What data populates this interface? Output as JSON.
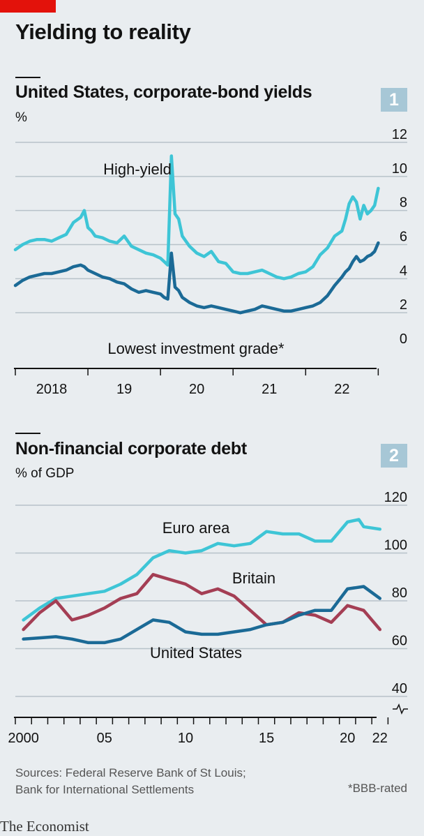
{
  "headline": "Yielding to reality",
  "source": {
    "line1": "Sources: Federal Reserve Bank of St Louis;",
    "line2": "Bank for International Settlements"
  },
  "footnote": "*BBB-rated",
  "brand": "The Economist",
  "colors": {
    "cyan": "#3ec5d6",
    "navy": "#1b6a96",
    "maroon": "#a43e54",
    "red_tag": "#e3120b",
    "badge": "#a7c7d6"
  },
  "chart_data": [
    {
      "type": "line",
      "badge": "1",
      "title": "United States, corporate-bond yields",
      "unit": "%",
      "x_tick_labels": [
        "2018",
        "19",
        "20",
        "21",
        "22"
      ],
      "x_ticks": [
        2017.5,
        2018.5,
        2019.5,
        2020.5,
        2021.5,
        2022.5
      ],
      "xlim": [
        2017.5,
        2022.9
      ],
      "ylim": [
        0,
        12
      ],
      "y_ticks": [
        0,
        2,
        4,
        6,
        8,
        10,
        12
      ],
      "grid": true,
      "series": [
        {
          "name": "High-yield",
          "color": "#3ec5d6",
          "x": [
            2017.5,
            2017.6,
            2017.7,
            2017.8,
            2017.9,
            2018.0,
            2018.1,
            2018.2,
            2018.3,
            2018.4,
            2018.45,
            2018.5,
            2018.55,
            2018.6,
            2018.7,
            2018.8,
            2018.9,
            2019.0,
            2019.1,
            2019.2,
            2019.3,
            2019.4,
            2019.5,
            2019.55,
            2019.6,
            2019.65,
            2019.7,
            2019.75,
            2019.8,
            2019.9,
            2020.0,
            2020.1,
            2020.2,
            2020.3,
            2020.4,
            2020.5,
            2020.6,
            2020.7,
            2020.8,
            2020.9,
            2021.0,
            2021.1,
            2021.2,
            2021.3,
            2021.4,
            2021.5,
            2021.6,
            2021.7,
            2021.8,
            2021.9,
            2022.0,
            2022.05,
            2022.1,
            2022.15,
            2022.2,
            2022.25,
            2022.3,
            2022.35,
            2022.4,
            2022.45,
            2022.5
          ],
          "y": [
            5.7,
            6.0,
            6.2,
            6.3,
            6.3,
            6.2,
            6.4,
            6.6,
            7.3,
            7.6,
            8.0,
            7.0,
            6.8,
            6.5,
            6.4,
            6.2,
            6.1,
            6.5,
            5.9,
            5.7,
            5.5,
            5.4,
            5.2,
            5.0,
            4.8,
            11.2,
            7.8,
            7.5,
            6.5,
            5.9,
            5.5,
            5.3,
            5.6,
            5.0,
            4.9,
            4.4,
            4.3,
            4.3,
            4.4,
            4.5,
            4.3,
            4.1,
            4.0,
            4.1,
            4.3,
            4.4,
            4.7,
            5.4,
            5.8,
            6.5,
            6.8,
            7.5,
            8.4,
            8.8,
            8.5,
            7.5,
            8.3,
            7.8,
            8.0,
            8.3,
            9.3
          ]
        },
        {
          "name": "Lowest investment grade*",
          "color": "#1b6a96",
          "x": [
            2017.5,
            2017.6,
            2017.7,
            2017.8,
            2017.9,
            2018.0,
            2018.1,
            2018.2,
            2018.3,
            2018.4,
            2018.45,
            2018.5,
            2018.6,
            2018.7,
            2018.8,
            2018.9,
            2019.0,
            2019.1,
            2019.2,
            2019.3,
            2019.4,
            2019.5,
            2019.55,
            2019.6,
            2019.65,
            2019.7,
            2019.75,
            2019.8,
            2019.9,
            2020.0,
            2020.1,
            2020.2,
            2020.3,
            2020.4,
            2020.5,
            2020.6,
            2020.7,
            2020.8,
            2020.9,
            2021.0,
            2021.1,
            2021.2,
            2021.3,
            2021.4,
            2021.5,
            2021.6,
            2021.7,
            2021.8,
            2021.9,
            2022.0,
            2022.05,
            2022.1,
            2022.15,
            2022.2,
            2022.25,
            2022.3,
            2022.35,
            2022.4,
            2022.45,
            2022.5
          ],
          "y": [
            3.6,
            3.9,
            4.1,
            4.2,
            4.3,
            4.3,
            4.4,
            4.5,
            4.7,
            4.8,
            4.7,
            4.5,
            4.3,
            4.1,
            4.0,
            3.8,
            3.7,
            3.4,
            3.2,
            3.3,
            3.2,
            3.1,
            2.9,
            2.8,
            5.5,
            3.5,
            3.3,
            2.9,
            2.6,
            2.4,
            2.3,
            2.4,
            2.3,
            2.2,
            2.1,
            2.0,
            2.1,
            2.2,
            2.4,
            2.3,
            2.2,
            2.1,
            2.1,
            2.2,
            2.3,
            2.4,
            2.6,
            3.0,
            3.6,
            4.1,
            4.4,
            4.6,
            5.0,
            5.3,
            5.0,
            5.1,
            5.3,
            5.4,
            5.6,
            6.1
          ]
        }
      ]
    },
    {
      "type": "line",
      "badge": "2",
      "title": "Non-financial corporate debt",
      "unit": "% of GDP",
      "x_tick_labels": [
        "2000",
        "05",
        "10",
        "15",
        "20",
        "22"
      ],
      "x_tick_label_positions": [
        2000,
        2005,
        2010,
        2015,
        2020,
        2022
      ],
      "x_ticks": [
        1999.5,
        2000.5,
        2001.5,
        2002.5,
        2003.5,
        2004.5,
        2005.5,
        2006.5,
        2007.5,
        2008.5,
        2009.5,
        2010.5,
        2011.5,
        2012.5,
        2013.5,
        2014.5,
        2015.5,
        2016.5,
        2017.5,
        2018.5,
        2019.5,
        2020.5,
        2021.5,
        2022.5
      ],
      "xlim": [
        1999.5,
        2023
      ],
      "ylim": [
        40,
        120
      ],
      "y_ticks": [
        40,
        60,
        80,
        100,
        120
      ],
      "axis_break": true,
      "grid": true,
      "series": [
        {
          "name": "Euro area",
          "color": "#3ec5d6",
          "x": [
            2000,
            2001,
            2002,
            2003,
            2004,
            2005,
            2006,
            2007,
            2008,
            2009,
            2010,
            2011,
            2012,
            2013,
            2014,
            2015,
            2016,
            2017,
            2018,
            2019,
            2020,
            2020.7,
            2021,
            2022
          ],
          "y": [
            72,
            77,
            81,
            82,
            83,
            84,
            87,
            91,
            98,
            101,
            100,
            101,
            104,
            103,
            104,
            109,
            108,
            108,
            105,
            105,
            113,
            114,
            111,
            110
          ]
        },
        {
          "name": "Britain",
          "color": "#a43e54",
          "x": [
            2000,
            2001,
            2002,
            2003,
            2004,
            2005,
            2006,
            2007,
            2008,
            2009,
            2010,
            2011,
            2012,
            2013,
            2014,
            2015,
            2016,
            2017,
            2018,
            2019,
            2020,
            2021,
            2022
          ],
          "y": [
            68,
            75,
            80,
            72,
            74,
            77,
            81,
            83,
            91,
            89,
            87,
            83,
            85,
            82,
            76,
            70,
            71,
            75,
            74,
            71,
            78,
            76,
            68
          ]
        },
        {
          "name": "United States",
          "color": "#1b6a96",
          "x": [
            2000,
            2001,
            2002,
            2003,
            2004,
            2005,
            2006,
            2007,
            2008,
            2009,
            2010,
            2011,
            2012,
            2013,
            2014,
            2015,
            2016,
            2017,
            2018,
            2019,
            2020,
            2021,
            2022
          ],
          "y": [
            64,
            64.5,
            65,
            64,
            62.5,
            62.5,
            64,
            68,
            72,
            71,
            67,
            66,
            66,
            67,
            68,
            70,
            71,
            74,
            76,
            76,
            85,
            86,
            81
          ]
        }
      ]
    }
  ]
}
